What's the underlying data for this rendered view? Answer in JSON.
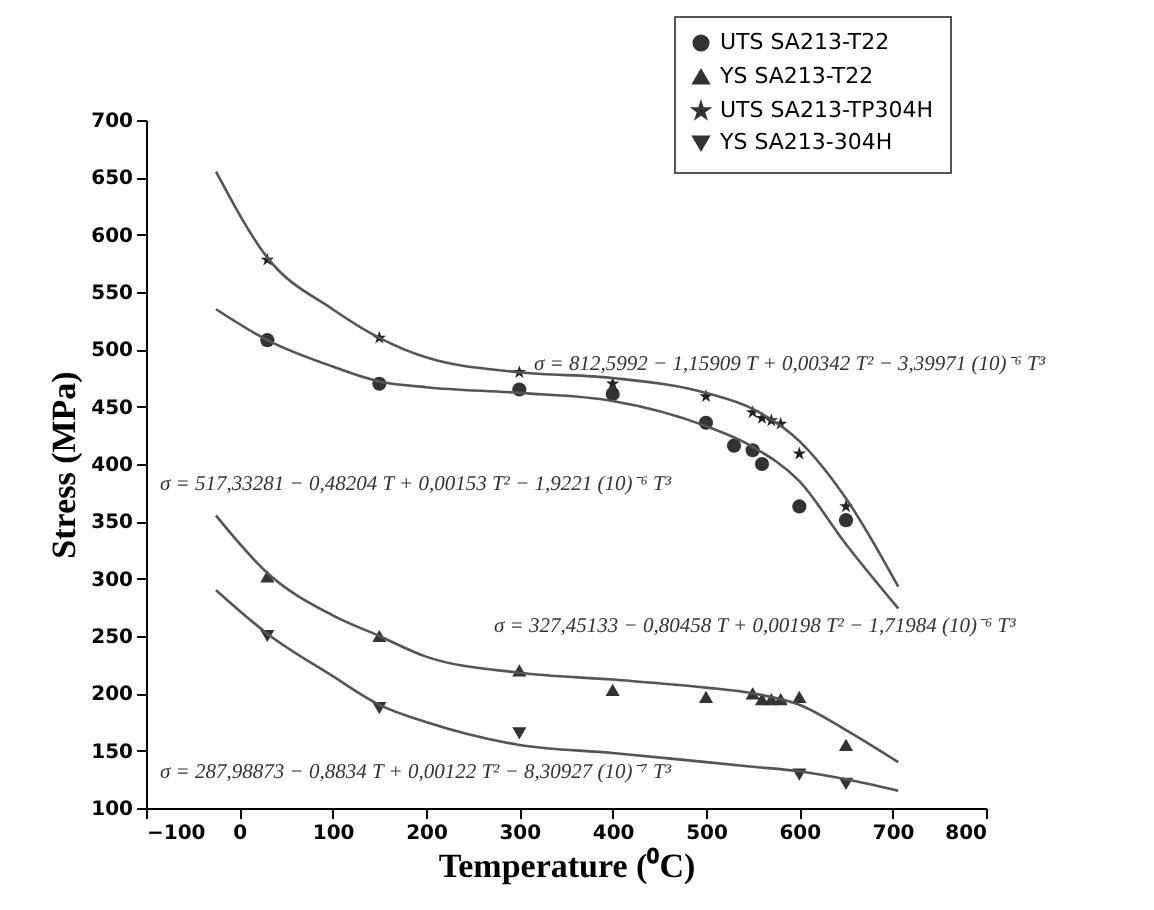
{
  "chart_data": {
    "type": "scatter",
    "xlabel": "Temperature (⁰C)",
    "ylabel": "Stress (MPa)",
    "xlim": [
      -100,
      800
    ],
    "xticks": [
      -100,
      0,
      100,
      200,
      300,
      400,
      500,
      600,
      700,
      800
    ],
    "ylim": [
      100,
      700
    ],
    "yticks": [
      100,
      150,
      200,
      250,
      300,
      350,
      400,
      450,
      500,
      550,
      600,
      650,
      700
    ],
    "grid": false,
    "legend": "top right",
    "series": [
      {
        "name": "UTS SA213-T22",
        "color": "#333333",
        "marker": "circle",
        "x": [
          30,
          150,
          300,
          400,
          500,
          530,
          550,
          560,
          600,
          650
        ],
        "values": [
          508,
          470,
          465,
          461,
          436,
          416,
          412,
          400,
          363,
          351
        ]
      },
      {
        "name": "YS SA213-T22",
        "color": "#333333",
        "marker": "triangle",
        "x": [
          30,
          150,
          300,
          400,
          500,
          550,
          560,
          570,
          580,
          600,
          650
        ],
        "values": [
          302,
          250,
          220,
          203,
          197,
          200,
          195,
          195,
          195,
          197,
          155
        ]
      },
      {
        "name": "UTS SA213-TP304H",
        "color": "#222222",
        "marker": "star",
        "x": [
          30,
          150,
          300,
          400,
          500,
          550,
          560,
          570,
          580,
          600,
          650
        ],
        "values": [
          578,
          510,
          480,
          470,
          459,
          445,
          440,
          438,
          435,
          409,
          363
        ]
      },
      {
        "name": "YS SA213-304H",
        "color": "#333333",
        "marker": "triangle-down",
        "x": [
          30,
          150,
          300,
          600,
          650
        ],
        "values": [
          250,
          187,
          165,
          129,
          121
        ]
      },
      {
        "type": "line",
        "color": "#555555",
        "marker": "none",
        "x": [
          -25,
          30,
          100,
          150,
          200,
          300,
          400,
          500,
          550,
          600,
          650,
          706
        ],
        "values": [
          655,
          580,
          535,
          510,
          493,
          480,
          475,
          462,
          448,
          420,
          370,
          293
        ]
      },
      {
        "type": "line",
        "color": "#555555",
        "marker": "none",
        "x": [
          -25,
          30,
          100,
          150,
          200,
          300,
          400,
          500,
          550,
          600,
          650,
          706
        ],
        "values": [
          535,
          508,
          485,
          472,
          467,
          462,
          455,
          433,
          415,
          385,
          330,
          274
        ]
      },
      {
        "type": "line",
        "color": "#555555",
        "marker": "none",
        "x": [
          -25,
          30,
          100,
          150,
          200,
          300,
          400,
          500,
          550,
          600,
          650,
          706
        ],
        "values": [
          355,
          305,
          268,
          250,
          232,
          218,
          212,
          205,
          200,
          190,
          168,
          140
        ]
      },
      {
        "type": "line",
        "color": "#555555",
        "marker": "none",
        "x": [
          -25,
          30,
          100,
          150,
          200,
          300,
          400,
          500,
          550,
          600,
          650,
          706
        ],
        "values": [
          290,
          252,
          215,
          190,
          175,
          155,
          148,
          140,
          136,
          132,
          125,
          115
        ]
      }
    ],
    "annotations": [
      "σ = 812,5992 − 1,15909 T + 0,00342 T² − 3,39971 (10)⁻⁶ T³",
      "σ = 517,33281 − 0,48204 T + 0,00153 T² − 1,9221 (10)⁻⁶ T³",
      "σ = 327,45133 − 0,80458 T + 0,00198 T² − 1,71984 (10)⁻⁶ T³",
      "σ = 287,98873 − 0,8834 T + 0,00122 T² − 8,30927 (10)⁻⁷ T³"
    ]
  }
}
